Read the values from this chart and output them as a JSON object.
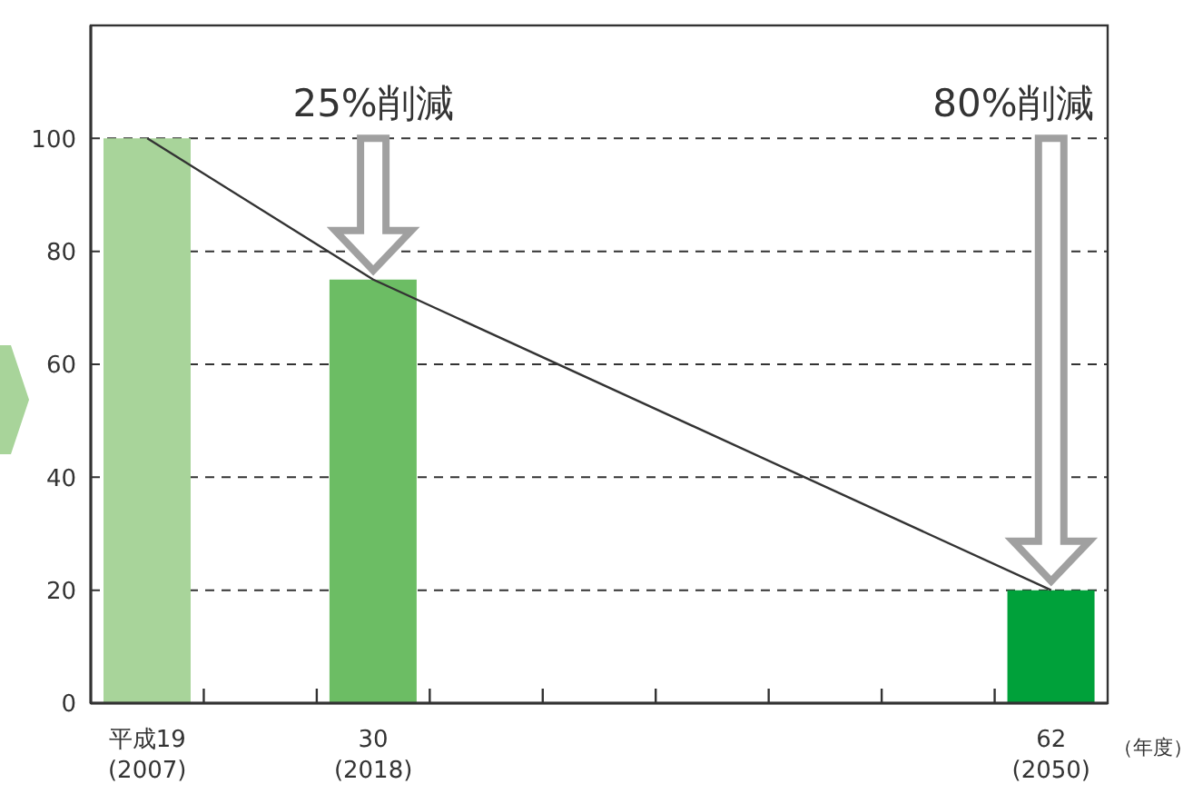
{
  "chart_data": {
    "type": "bar",
    "categories": [
      "平成19\n(2007)",
      null,
      "30\n(2018)",
      null,
      null,
      null,
      null,
      null,
      "62\n(2050)"
    ],
    "xlabel": "（年度）",
    "series": [
      {
        "colors": [
          "#a8d49a",
          null,
          "#6cbd64",
          null,
          null,
          null,
          null,
          null,
          "#00a13a"
        ],
        "values": [
          100,
          null,
          75,
          null,
          null,
          null,
          null,
          null,
          20
        ]
      },
      {
        "type": "line",
        "color": "#333333",
        "values": [
          100,
          null,
          75,
          null,
          null,
          null,
          null,
          null,
          20
        ]
      }
    ],
    "ylim": [
      0,
      120
    ],
    "yticks": [
      0,
      20,
      40,
      60,
      80,
      100
    ],
    "grid": "y",
    "annotations": [
      "25%削減",
      "80%削減"
    ]
  }
}
